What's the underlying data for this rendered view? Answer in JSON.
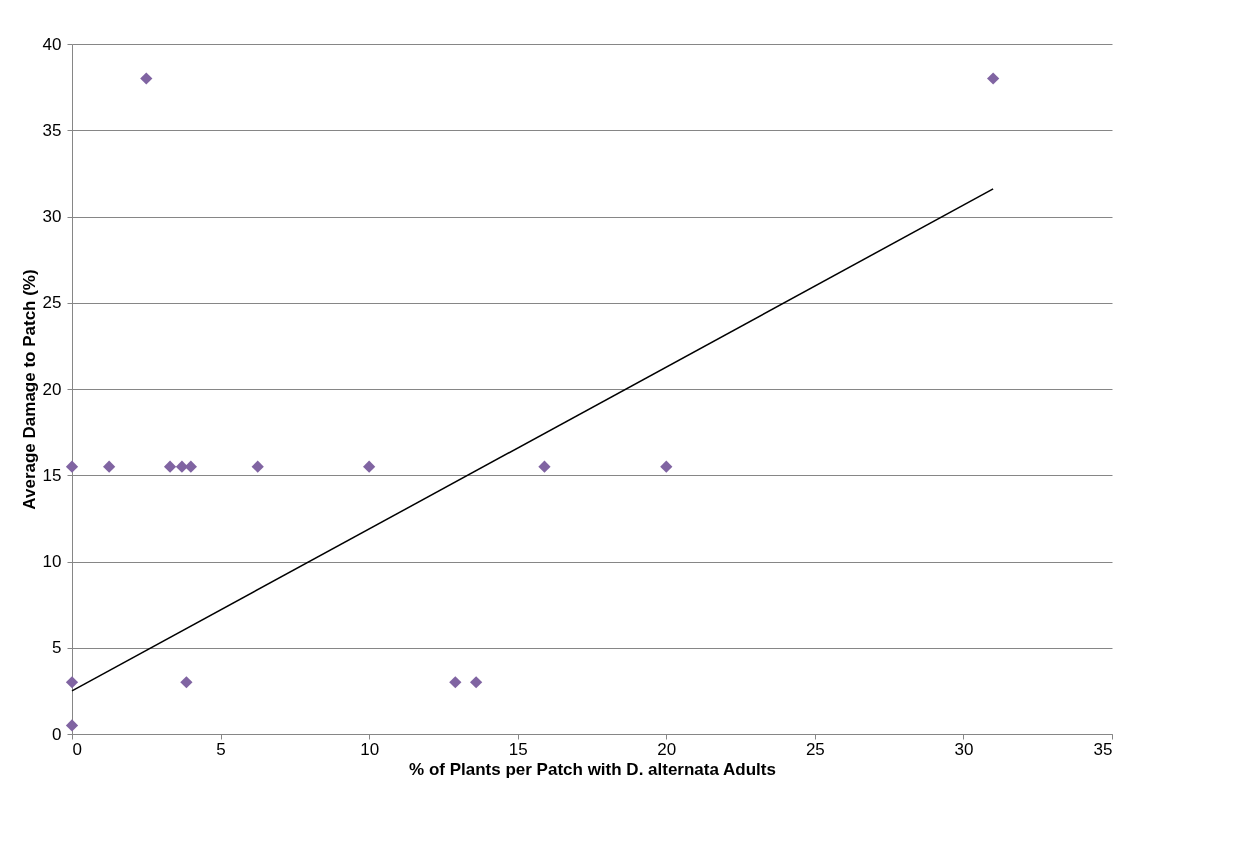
{
  "chart_data": {
    "type": "scatter",
    "xlabel": "% of Plants per Patch with D. alternata Adults",
    "ylabel": "Average Damage to Patch (%)",
    "xlim": [
      0,
      35
    ],
    "xticks": [
      0,
      5,
      10,
      15,
      20,
      25,
      30,
      35
    ],
    "ylim": [
      0,
      40
    ],
    "yticks": [
      0,
      5,
      10,
      15,
      20,
      25,
      30,
      35,
      40
    ],
    "grid": "y",
    "marker": "diamond",
    "series": [
      {
        "color": "#8064a2",
        "x": [
          0,
          0,
          0,
          1.25,
          2.5,
          3.3,
          3.7,
          4,
          3.85,
          6.25,
          10,
          12.9,
          13.6,
          15.9,
          20,
          31
        ],
        "values": [
          15.5,
          3,
          0.5,
          15.5,
          38,
          15.5,
          15.5,
          15.5,
          3,
          15.5,
          15.5,
          3,
          3,
          15.5,
          15.5,
          38
        ]
      },
      {
        "type": "line",
        "color": "#000000",
        "line_style": "solid",
        "marker": "none",
        "x": [
          0,
          31
        ],
        "values": [
          2.5,
          31.6
        ]
      }
    ]
  }
}
